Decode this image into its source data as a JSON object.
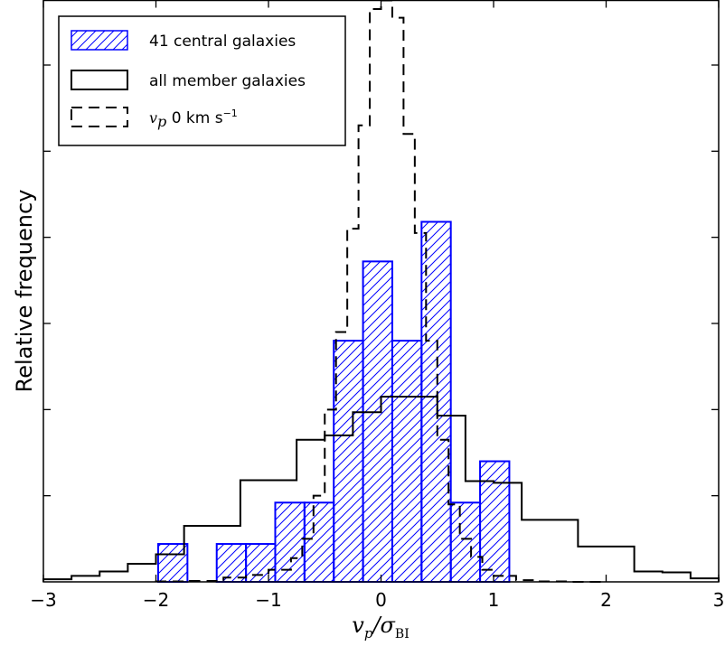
{
  "chart_data": {
    "type": "histogram",
    "xlabel": "v_p/σ_BI",
    "xlabel_parts": {
      "main": "v",
      "sub1": "p",
      "slash": "/σ",
      "sub2": "BI"
    },
    "ylabel": "Relative frequency",
    "xlim": [
      -3,
      3
    ],
    "ylim": [
      0,
      0.135
    ],
    "xticks": [
      "−3",
      "−2",
      "−1",
      "0",
      "1",
      "2",
      "3"
    ],
    "x_tick_values": [
      -3,
      -2,
      -1,
      0,
      1,
      2,
      3
    ],
    "y_tick_values": [
      0.02,
      0.04,
      0.06,
      0.08,
      0.1,
      0.12
    ],
    "grid": false,
    "legend_position": "top-left",
    "colors": {
      "central": "#0000ff",
      "all": "#000000",
      "zero": "#000000"
    },
    "series": [
      {
        "name": "41 central galaxies",
        "style": "hatched-bar",
        "bin_edges": [
          -1.98,
          -1.72,
          -1.46,
          -1.2,
          -0.94,
          -0.68,
          -0.42,
          -0.16,
          0.1,
          0.36,
          0.62,
          0.88,
          1.14
        ],
        "values": [
          0.0088,
          0.0,
          0.0088,
          0.0088,
          0.0184,
          0.0184,
          0.056,
          0.0744,
          0.056,
          0.0836,
          0.0184,
          0.028
        ]
      },
      {
        "name": "all member galaxies",
        "style": "step-solid",
        "bin_edges": [
          -3.0,
          -2.75,
          -2.5,
          -2.25,
          -2.0,
          -1.75,
          -1.5,
          -1.25,
          -1.0,
          -0.75,
          -0.5,
          -0.25,
          0.0,
          0.25,
          0.5,
          0.75,
          1.0,
          1.25,
          1.5,
          1.75,
          2.0,
          2.25,
          2.5,
          2.75,
          3.0
        ],
        "values": [
          0.0006,
          0.0014,
          0.0024,
          0.0042,
          0.0064,
          0.013,
          0.013,
          0.0236,
          0.0236,
          0.033,
          0.034,
          0.0394,
          0.043,
          0.043,
          0.0386,
          0.0234,
          0.023,
          0.0144,
          0.0144,
          0.0082,
          0.0082,
          0.0024,
          0.0022,
          0.0008
        ]
      },
      {
        "name": "v_p 0 km s^-1",
        "legend_label": {
          "math": "v",
          "sub": "p",
          "text": " 0 km s",
          "sup": "−1"
        },
        "style": "step-dashed",
        "bin_edges": [
          -2.0,
          -1.7,
          -1.4,
          -1.2,
          -1.0,
          -0.8,
          -0.7,
          -0.6,
          -0.5,
          -0.4,
          -0.3,
          -0.2,
          -0.1,
          0.0,
          0.1,
          0.2,
          0.3,
          0.4,
          0.5,
          0.6,
          0.7,
          0.8,
          0.9,
          1.0,
          1.2,
          1.4,
          1.7,
          2.0
        ],
        "values": [
          0.0001,
          0.0002,
          0.001,
          0.0016,
          0.0028,
          0.0055,
          0.01,
          0.02,
          0.04,
          0.058,
          0.082,
          0.106,
          0.133,
          0.135,
          0.131,
          0.104,
          0.081,
          0.056,
          0.033,
          0.018,
          0.01,
          0.0058,
          0.0028,
          0.0014,
          0.0004,
          0.0001,
          0.0
        ]
      }
    ]
  }
}
